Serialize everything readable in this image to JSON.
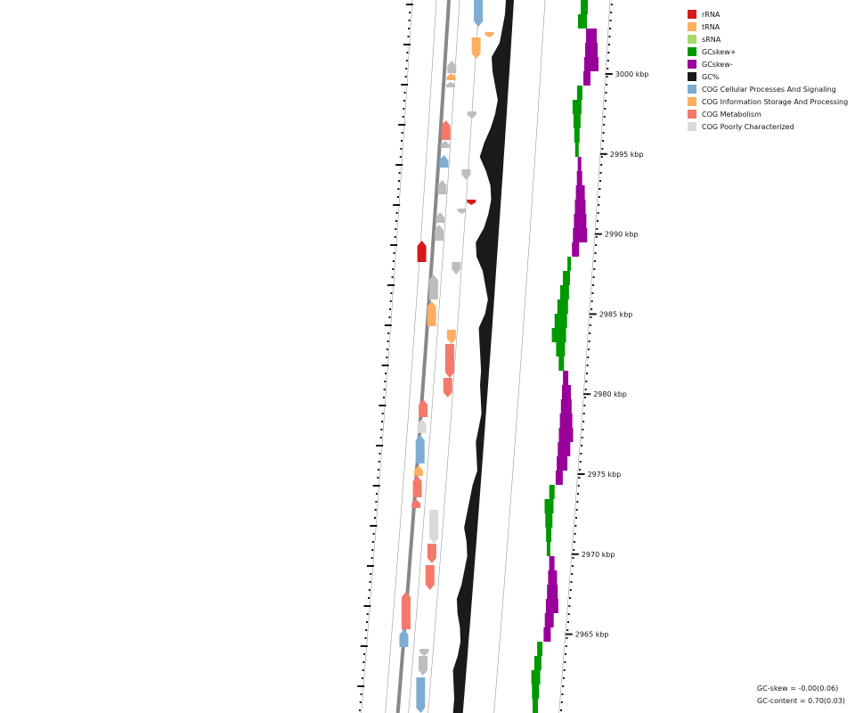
{
  "legend": [
    {
      "label": "rRNA",
      "color": "#d7191c"
    },
    {
      "label": "tRNA",
      "color": "#fdae61"
    },
    {
      "label": "sRNA",
      "color": "#a6d96a"
    },
    {
      "label": "GCskew+",
      "color": "#009900"
    },
    {
      "label": "GCskew-",
      "color": "#990099"
    },
    {
      "label": "GC%",
      "color": "#1a1a1a"
    },
    {
      "label": "COG Cellular Processes And Signaling",
      "color": "#7fadd2"
    },
    {
      "label": "COG Information Storage And Processing",
      "color": "#fdae61"
    },
    {
      "label": "COG Metabolism",
      "color": "#f4796a"
    },
    {
      "label": "COG Poorly Characterized",
      "color": "#d9d9d9"
    }
  ],
  "kbp_labels": [
    "3000 kbp",
    "2995 kbp",
    "2990 kbp",
    "2985 kbp",
    "2980 kbp",
    "2975 kbp",
    "2970 kbp",
    "2965 kbp"
  ],
  "stats": {
    "gc_skew": "GC-skew = -0.00(0.06)",
    "gc_content": "GC-content = 0.70(0.03)"
  },
  "colors": {
    "rRNA": "#d7191c",
    "tRNA": "#fdae61",
    "cellular": "#7fadd2",
    "metabolism": "#f4796a",
    "poorly": "#d9d9d9",
    "grey_feature": "#bdbdbd",
    "gc": "#1a1a1a",
    "skew_plus": "#009900",
    "skew_minus": "#990099",
    "backbone": "#888888"
  }
}
